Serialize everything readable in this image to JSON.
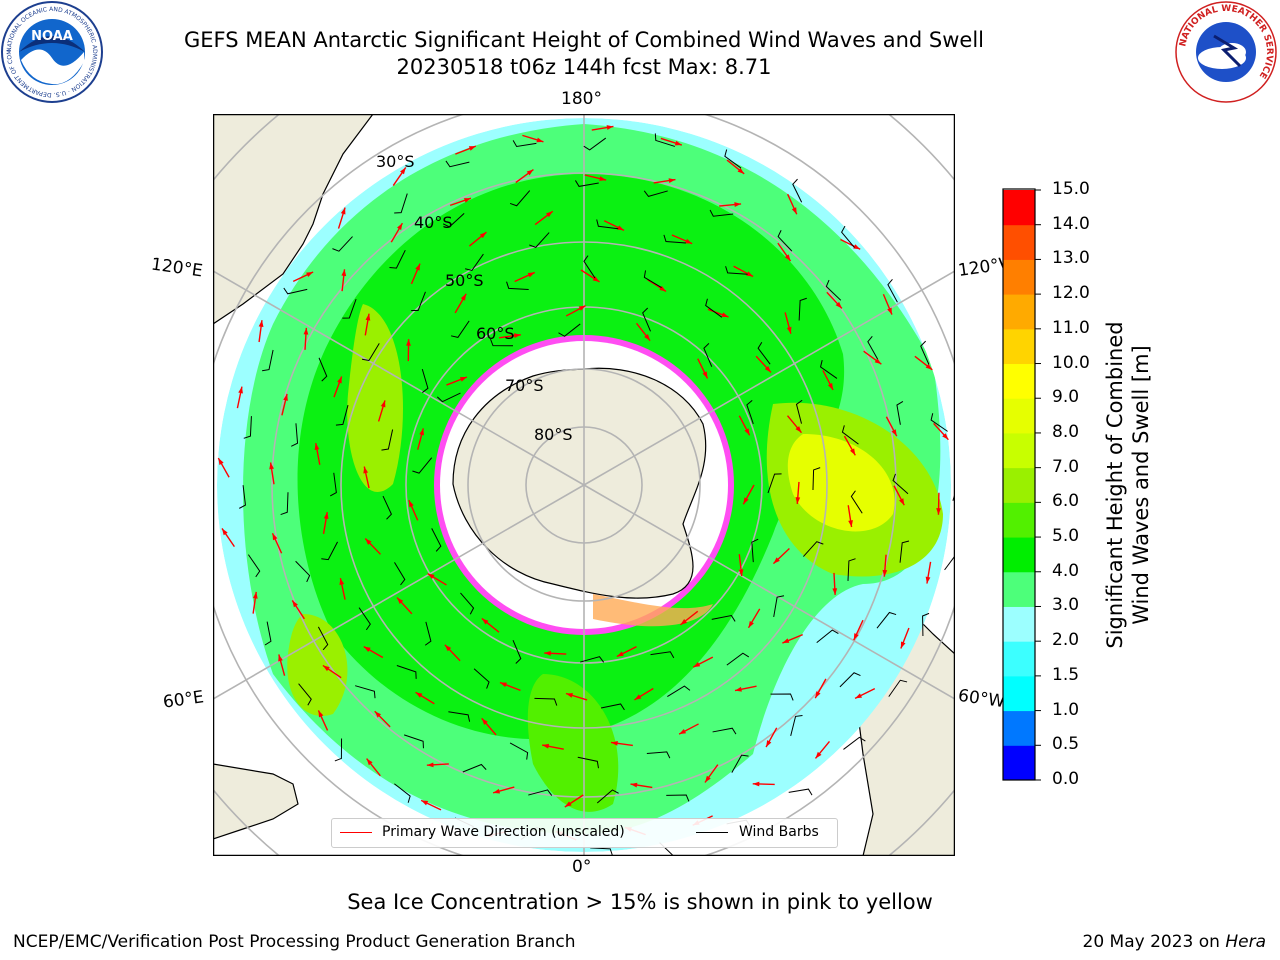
{
  "title": {
    "line1": "GEFS MEAN Antarctic Significant Height of Combined Wind Waves and Swell",
    "line2": "20230518 t06z 144h fcst   Max: 8.71"
  },
  "map": {
    "projection": "south-polar-stereographic",
    "longitude_labels": {
      "top": "180°",
      "bottom": "0°",
      "upper_left": "120°E",
      "lower_left": "60°E",
      "upper_right": "120°W",
      "lower_right": "60°W"
    },
    "latitude_labels": [
      "30°S",
      "40°S",
      "50°S",
      "60°S",
      "70°S",
      "80°S"
    ],
    "colors": {
      "land": "#eeecdc",
      "ice_free": "#ffffff",
      "grid": "#b4b4b4",
      "wave_arrow": "#ff0000",
      "wind_barb": "#000000",
      "sea_ice": "#ff4df2"
    }
  },
  "colorbar": {
    "title_line1": "Significant Height of Combined",
    "title_line2": "Wind Waves and Swell [m]",
    "ticks": [
      "0.0",
      "0.5",
      "1.0",
      "1.5",
      "2.0",
      "3.0",
      "4.0",
      "5.0",
      "6.0",
      "7.0",
      "8.0",
      "9.0",
      "10.0",
      "11.0",
      "12.0",
      "13.0",
      "14.0",
      "15.0"
    ],
    "colors": [
      "#0000ff",
      "#0078ff",
      "#00ffff",
      "#3cffff",
      "#9cffff",
      "#4dff7a",
      "#00ee00",
      "#52f000",
      "#9af000",
      "#c8ff00",
      "#e6ff00",
      "#ffff00",
      "#ffd400",
      "#ffaa00",
      "#ff7f00",
      "#ff4f00",
      "#ff0000"
    ]
  },
  "legend": {
    "wave_label": "Primary Wave Direction (unscaled)",
    "wind_label": "Wind Barbs"
  },
  "note": "Sea Ice Concentration > 15% is shown in pink to yellow",
  "footer": {
    "left": "NCEP/EMC/Verification Post Processing Product Generation Branch",
    "date": "20 May 2023 on ",
    "host": "Hera"
  },
  "logos": {
    "left": "NOAA",
    "left_ring": "NATIONAL OCEANIC AND ATMOSPHERIC ADMINISTRATION · U.S. DEPARTMENT OF COMMERCE",
    "right_ring": "NATIONAL WEATHER SERVICE"
  }
}
